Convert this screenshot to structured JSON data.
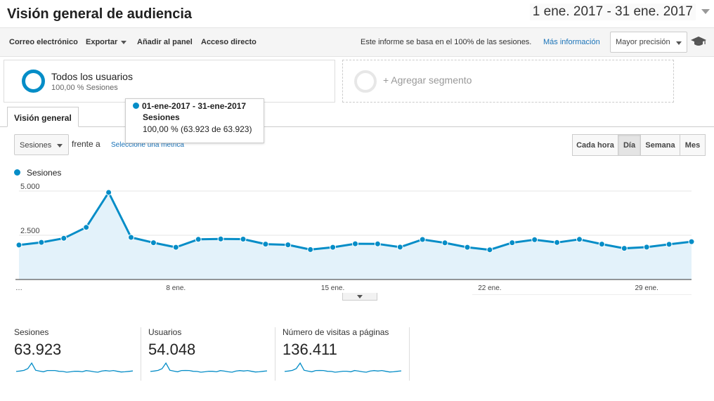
{
  "header": {
    "title": "Visión general de audiencia",
    "date_range": "1 ene. 2017 - 31 ene. 2017"
  },
  "toolbar": {
    "email": "Correo electrónico",
    "export": "Exportar",
    "add_to_panel": "Añadir al panel",
    "shortcut": "Acceso directo",
    "note": "Este informe se basa en el 100% de las sesiones.",
    "more_info": "Más información",
    "precision": "Mayor precisión",
    "icons": {
      "precision": "graduation-cap-icon"
    }
  },
  "segments": {
    "active": {
      "name": "Todos los usuarios",
      "share": "100,00 % Sesiones"
    },
    "add": "+ Agregar segmento"
  },
  "tabs": {
    "overview": "Visión general"
  },
  "tooltip": {
    "date": "01-ene-2017 - 31-ene-2017",
    "metric": "Sesiones",
    "value": "100,00 % (63.923 de 63.923)"
  },
  "controls": {
    "metric": "Sesiones",
    "versus": "frente a",
    "select_metric": "Seleccione una métrica",
    "granularity": [
      "Cada hora",
      "Día",
      "Semana",
      "Mes"
    ],
    "granularity_selected": "Día"
  },
  "chart_data": {
    "type": "area",
    "series": [
      {
        "name": "Sesiones",
        "values": [
          1950,
          2100,
          2330,
          2950,
          4920,
          2380,
          2080,
          1820,
          2270,
          2290,
          2280,
          2000,
          1960,
          1690,
          1820,
          2020,
          2010,
          1830,
          2260,
          2070,
          1820,
          1680,
          2080,
          2250,
          2090,
          2270,
          2000,
          1760,
          1830,
          1990,
          2140
        ]
      }
    ],
    "x_ticks": [
      {
        "index": 0,
        "label": "…"
      },
      {
        "index": 7,
        "label": "8 ene."
      },
      {
        "index": 14,
        "label": "15 ene."
      },
      {
        "index": 21,
        "label": "22 ene."
      },
      {
        "index": 28,
        "label": "29 ene."
      }
    ],
    "y_ticks": [
      {
        "value": 2500,
        "label": "2.500"
      },
      {
        "value": 5000,
        "label": "5.000"
      }
    ],
    "ylim": [
      0,
      5000
    ],
    "grid": true,
    "color": "#058dc7",
    "fill_color": "#e3f2fa"
  },
  "kpis": [
    {
      "label": "Sesiones",
      "value": "63.923",
      "spark": [
        1950,
        2100,
        2330,
        2950,
        4920,
        2380,
        2080,
        1820,
        2270,
        2290,
        2280,
        2000,
        1960,
        1690,
        1820,
        2020,
        2010,
        1830,
        2260,
        2070,
        1820,
        1680,
        2080,
        2250,
        2090,
        2270,
        2000,
        1760,
        1830,
        1990,
        2140
      ]
    },
    {
      "label": "Usuarios",
      "value": "54.048",
      "spark": [
        1650,
        1780,
        1960,
        2450,
        4100,
        2000,
        1760,
        1550,
        1920,
        1940,
        1930,
        1700,
        1660,
        1440,
        1550,
        1710,
        1700,
        1560,
        1910,
        1750,
        1550,
        1430,
        1760,
        1900,
        1770,
        1920,
        1700,
        1500,
        1550,
        1690,
        1810
      ]
    },
    {
      "label": "Número de visitas a páginas",
      "value": "136.411",
      "spark": [
        4150,
        4480,
        4970,
        6300,
        10400,
        5070,
        4430,
        3880,
        4840,
        4890,
        4860,
        4270,
        4180,
        3600,
        3880,
        4310,
        4290,
        3900,
        4820,
        4420,
        3880,
        3580,
        4440,
        4800,
        4460,
        4840,
        4270,
        3750,
        3900,
        4250,
        4560
      ]
    }
  ],
  "colors": {
    "accent": "#058dc7",
    "link": "#1a73b8"
  }
}
